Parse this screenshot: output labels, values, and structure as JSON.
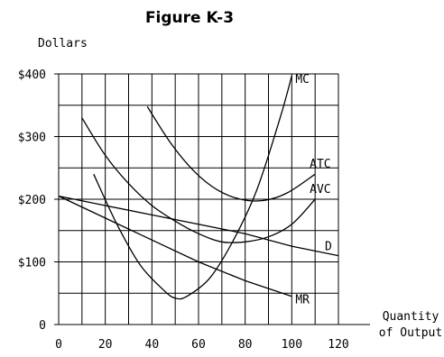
{
  "chart_data": {
    "type": "line",
    "title": "Figure K-3",
    "ylabel": "Dollars",
    "xlabel_lines": [
      "Quantity",
      "of Output"
    ],
    "x_ticks": [
      0,
      20,
      40,
      60,
      80,
      100,
      120
    ],
    "x_tick_labels": [
      "0",
      "20",
      "40",
      "60",
      "80",
      "100",
      "120"
    ],
    "y_ticks": [
      0,
      100,
      200,
      300,
      400
    ],
    "y_tick_labels": [
      "0",
      "$100",
      "$200",
      "$300",
      "$400"
    ],
    "xlim": [
      0,
      120
    ],
    "ylim": [
      0,
      400
    ],
    "grid": true,
    "grid_step_x": 10,
    "grid_step_y": 50,
    "line_color": "#000000",
    "series": [
      {
        "name": "MC",
        "x": [
          15,
          25,
          35,
          45,
          50,
          55,
          65,
          75,
          85,
          95,
          100
        ],
        "y": [
          240,
          160,
          95,
          55,
          42,
          45,
          75,
          135,
          215,
          330,
          397
        ]
      },
      {
        "name": "ATC",
        "x": [
          38,
          48,
          58,
          68,
          78,
          88,
          98,
          110
        ],
        "y": [
          348,
          290,
          245,
          215,
          200,
          198,
          210,
          240
        ]
      },
      {
        "name": "AVC",
        "x": [
          10,
          20,
          30,
          40,
          50,
          60,
          70,
          80,
          90,
          100,
          110
        ],
        "y": [
          330,
          270,
          225,
          190,
          165,
          145,
          132,
          132,
          140,
          160,
          200
        ]
      },
      {
        "name": "D",
        "x": [
          0,
          20,
          40,
          60,
          80,
          100,
          120
        ],
        "y": [
          205,
          190,
          175,
          160,
          145,
          125,
          110
        ]
      },
      {
        "name": "MR",
        "x": [
          0,
          20,
          40,
          60,
          80,
          100
        ],
        "y": [
          205,
          170,
          135,
          100,
          70,
          45
        ]
      }
    ]
  }
}
